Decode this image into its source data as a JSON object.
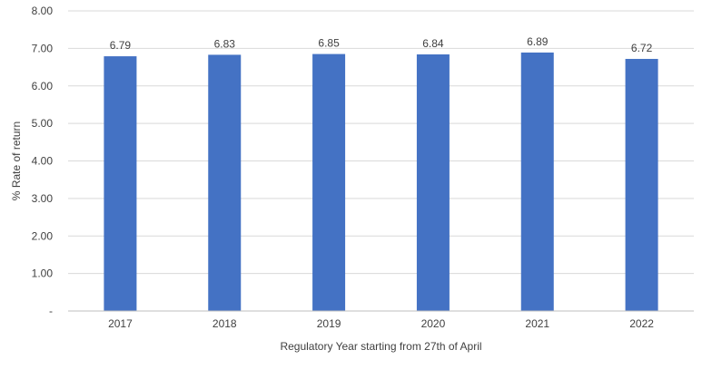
{
  "chart_data": {
    "type": "bar",
    "categories": [
      "2017",
      "2018",
      "2019",
      "2020",
      "2021",
      "2022"
    ],
    "values": [
      6.79,
      6.83,
      6.85,
      6.84,
      6.89,
      6.72
    ],
    "data_labels": [
      "6.79",
      "6.83",
      "6.85",
      "6.84",
      "6.89",
      "6.72"
    ],
    "title": "",
    "xlabel": "Regulatory Year starting from 27th of April",
    "ylabel": "% Rate of return",
    "ylim": [
      0,
      8
    ],
    "y_ticks": [
      0,
      1,
      2,
      3,
      4,
      5,
      6,
      7,
      8
    ],
    "y_tick_labels": [
      "-",
      "1.00",
      "2.00",
      "3.00",
      "4.00",
      "5.00",
      "6.00",
      "7.00",
      "8.00"
    ],
    "grid": true,
    "legend": "none",
    "bar_color": "#4472c4"
  }
}
